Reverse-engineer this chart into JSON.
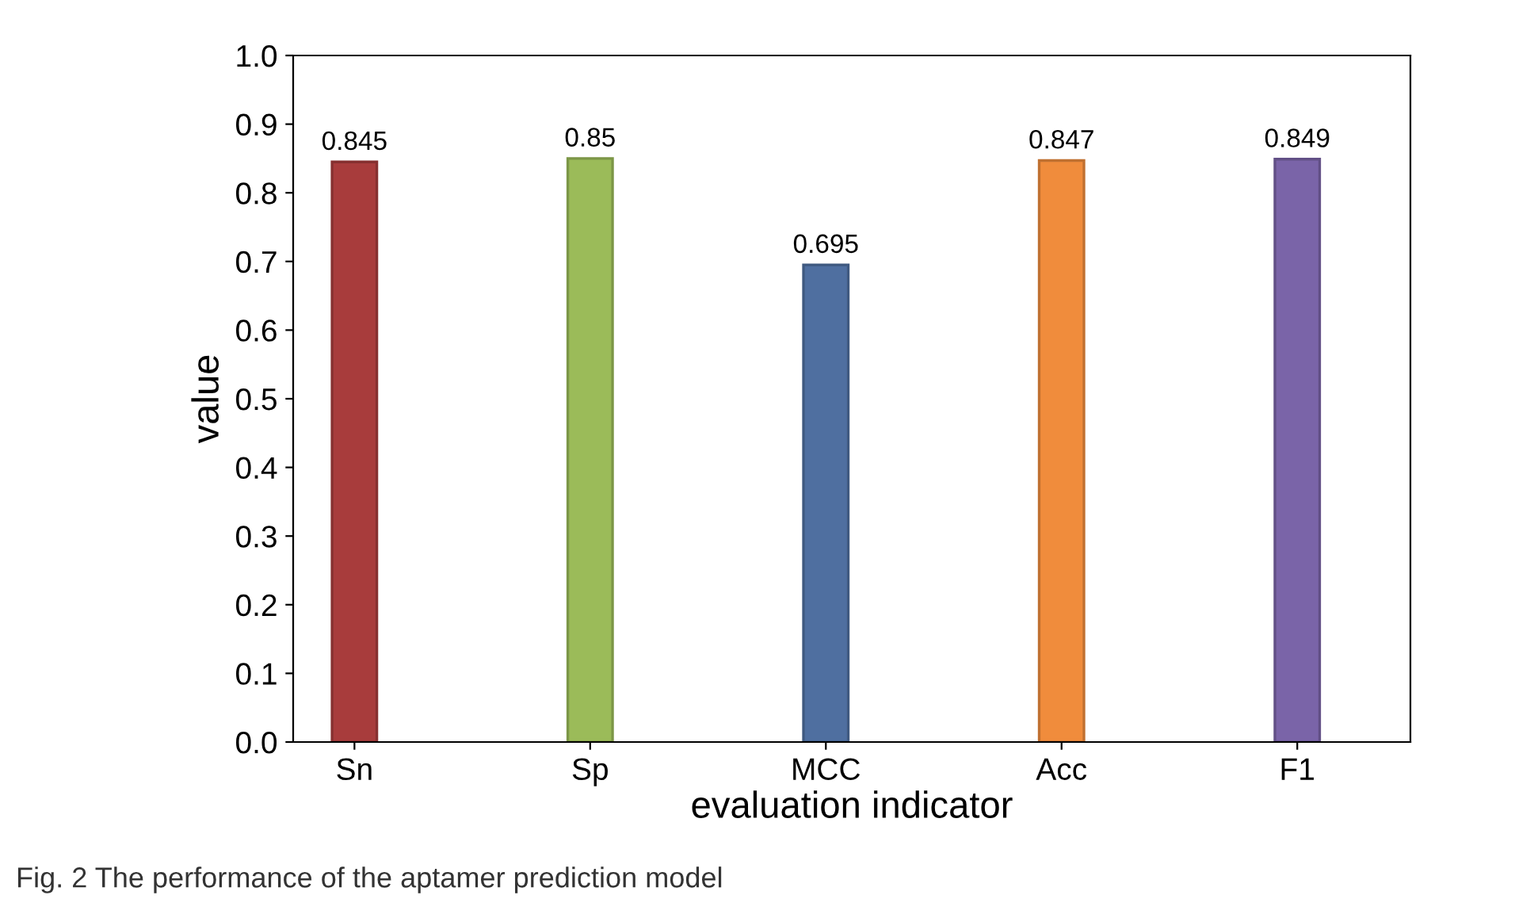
{
  "chart_data": {
    "type": "bar",
    "xlabel": "evaluation indicator",
    "ylabel": "value",
    "categories": [
      "Sn",
      "Sp",
      "MCC",
      "Acc",
      "F1"
    ],
    "values": [
      0.845,
      0.85,
      0.695,
      0.847,
      0.849
    ],
    "colors": [
      "#a83c3c",
      "#9bbb59",
      "#4f6fa0",
      "#f08c3c",
      "#7a64a8"
    ],
    "ylim": [
      0,
      1.0
    ],
    "yticks": [
      {
        "value": 0,
        "label": "0.0"
      },
      0.1,
      0.2,
      0.3,
      0.4,
      0.5,
      0.6,
      0.7,
      0.8,
      0.9,
      {
        "value": 1,
        "label": "1.0"
      }
    ],
    "data_labels": true,
    "grid": false,
    "legend": false,
    "annotations": [
      "Fig. 2 The performance of the aptamer prediction model"
    ]
  }
}
